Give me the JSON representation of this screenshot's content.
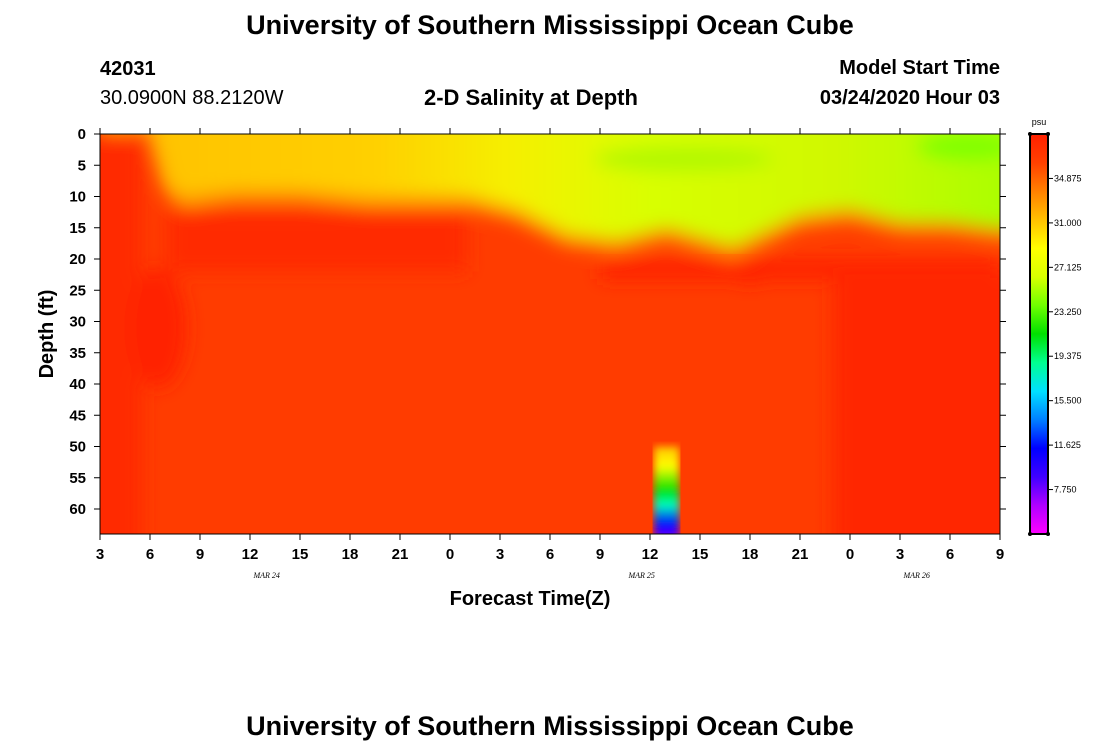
{
  "header": {
    "title_top": "University of Southern Mississippi Ocean Cube",
    "station_id": "42031",
    "coords": "30.0900N 88.2120W",
    "plot_title": "2-D Salinity at Depth",
    "model_start_label": "Model Start Time",
    "model_start_value": "03/24/2020 Hour 03"
  },
  "footer": {
    "title_bottom": "University of Southern Mississippi Ocean Cube"
  },
  "chart_data": {
    "type": "heatmap",
    "title": "2-D Salinity at Depth",
    "xlabel": "Forecast Time(Z)",
    "ylabel": "Depth (ft)",
    "x_range_hours": [
      0,
      54
    ],
    "y_range_ft": [
      0,
      64
    ],
    "x_tick_labels": [
      "3",
      "6",
      "9",
      "12",
      "15",
      "18",
      "21",
      "0",
      "3",
      "6",
      "9",
      "12",
      "15",
      "18",
      "21",
      "0",
      "3",
      "6",
      "9"
    ],
    "y_ticks": [
      0,
      5,
      10,
      15,
      20,
      25,
      30,
      35,
      40,
      45,
      50,
      55,
      60
    ],
    "date_labels": [
      {
        "text": "MAR  24",
        "hour": 10
      },
      {
        "text": "MAR  25",
        "hour": 32.5
      },
      {
        "text": "MAR  26",
        "hour": 49
      }
    ],
    "colorbar": {
      "unit": "psu",
      "min": 3.875,
      "max": 38.75,
      "ticks": [
        34.875,
        31.0,
        27.125,
        23.25,
        19.375,
        15.5,
        11.625,
        7.75
      ],
      "tick_labels": [
        "34.875",
        "31.000",
        "27.125",
        "23.250",
        "19.375",
        "15.500",
        "11.625",
        "7.750"
      ],
      "colors": [
        "#ff00ff",
        "#b000ff",
        "#4000ff",
        "#0000ff",
        "#0080ff",
        "#00e0ff",
        "#00ff90",
        "#00e000",
        "#70ff00",
        "#d8ff00",
        "#ffff00",
        "#ffc000",
        "#ff8000",
        "#ff4000",
        "#ff2000"
      ]
    },
    "surface_layer_bottom_ft": [
      {
        "hour": 0,
        "depth": 0
      },
      {
        "hour": 3,
        "depth": 0
      },
      {
        "hour": 4,
        "depth": 10
      },
      {
        "hour": 5,
        "depth": 12
      },
      {
        "hour": 8,
        "depth": 11
      },
      {
        "hour": 12,
        "depth": 11
      },
      {
        "hour": 16,
        "depth": 12
      },
      {
        "hour": 22,
        "depth": 12
      },
      {
        "hour": 25,
        "depth": 14
      },
      {
        "hour": 28,
        "depth": 18
      },
      {
        "hour": 31,
        "depth": 19
      },
      {
        "hour": 34,
        "depth": 17
      },
      {
        "hour": 38,
        "depth": 20
      },
      {
        "hour": 42,
        "depth": 15
      },
      {
        "hour": 45,
        "depth": 14
      },
      {
        "hour": 48,
        "depth": 16
      },
      {
        "hour": 51,
        "depth": 16
      },
      {
        "hour": 54,
        "depth": 17
      }
    ],
    "fresh_column": {
      "hour_start": 33.25,
      "hour_end": 34.75,
      "depth_top": 50,
      "depth_bottom": 64
    }
  }
}
